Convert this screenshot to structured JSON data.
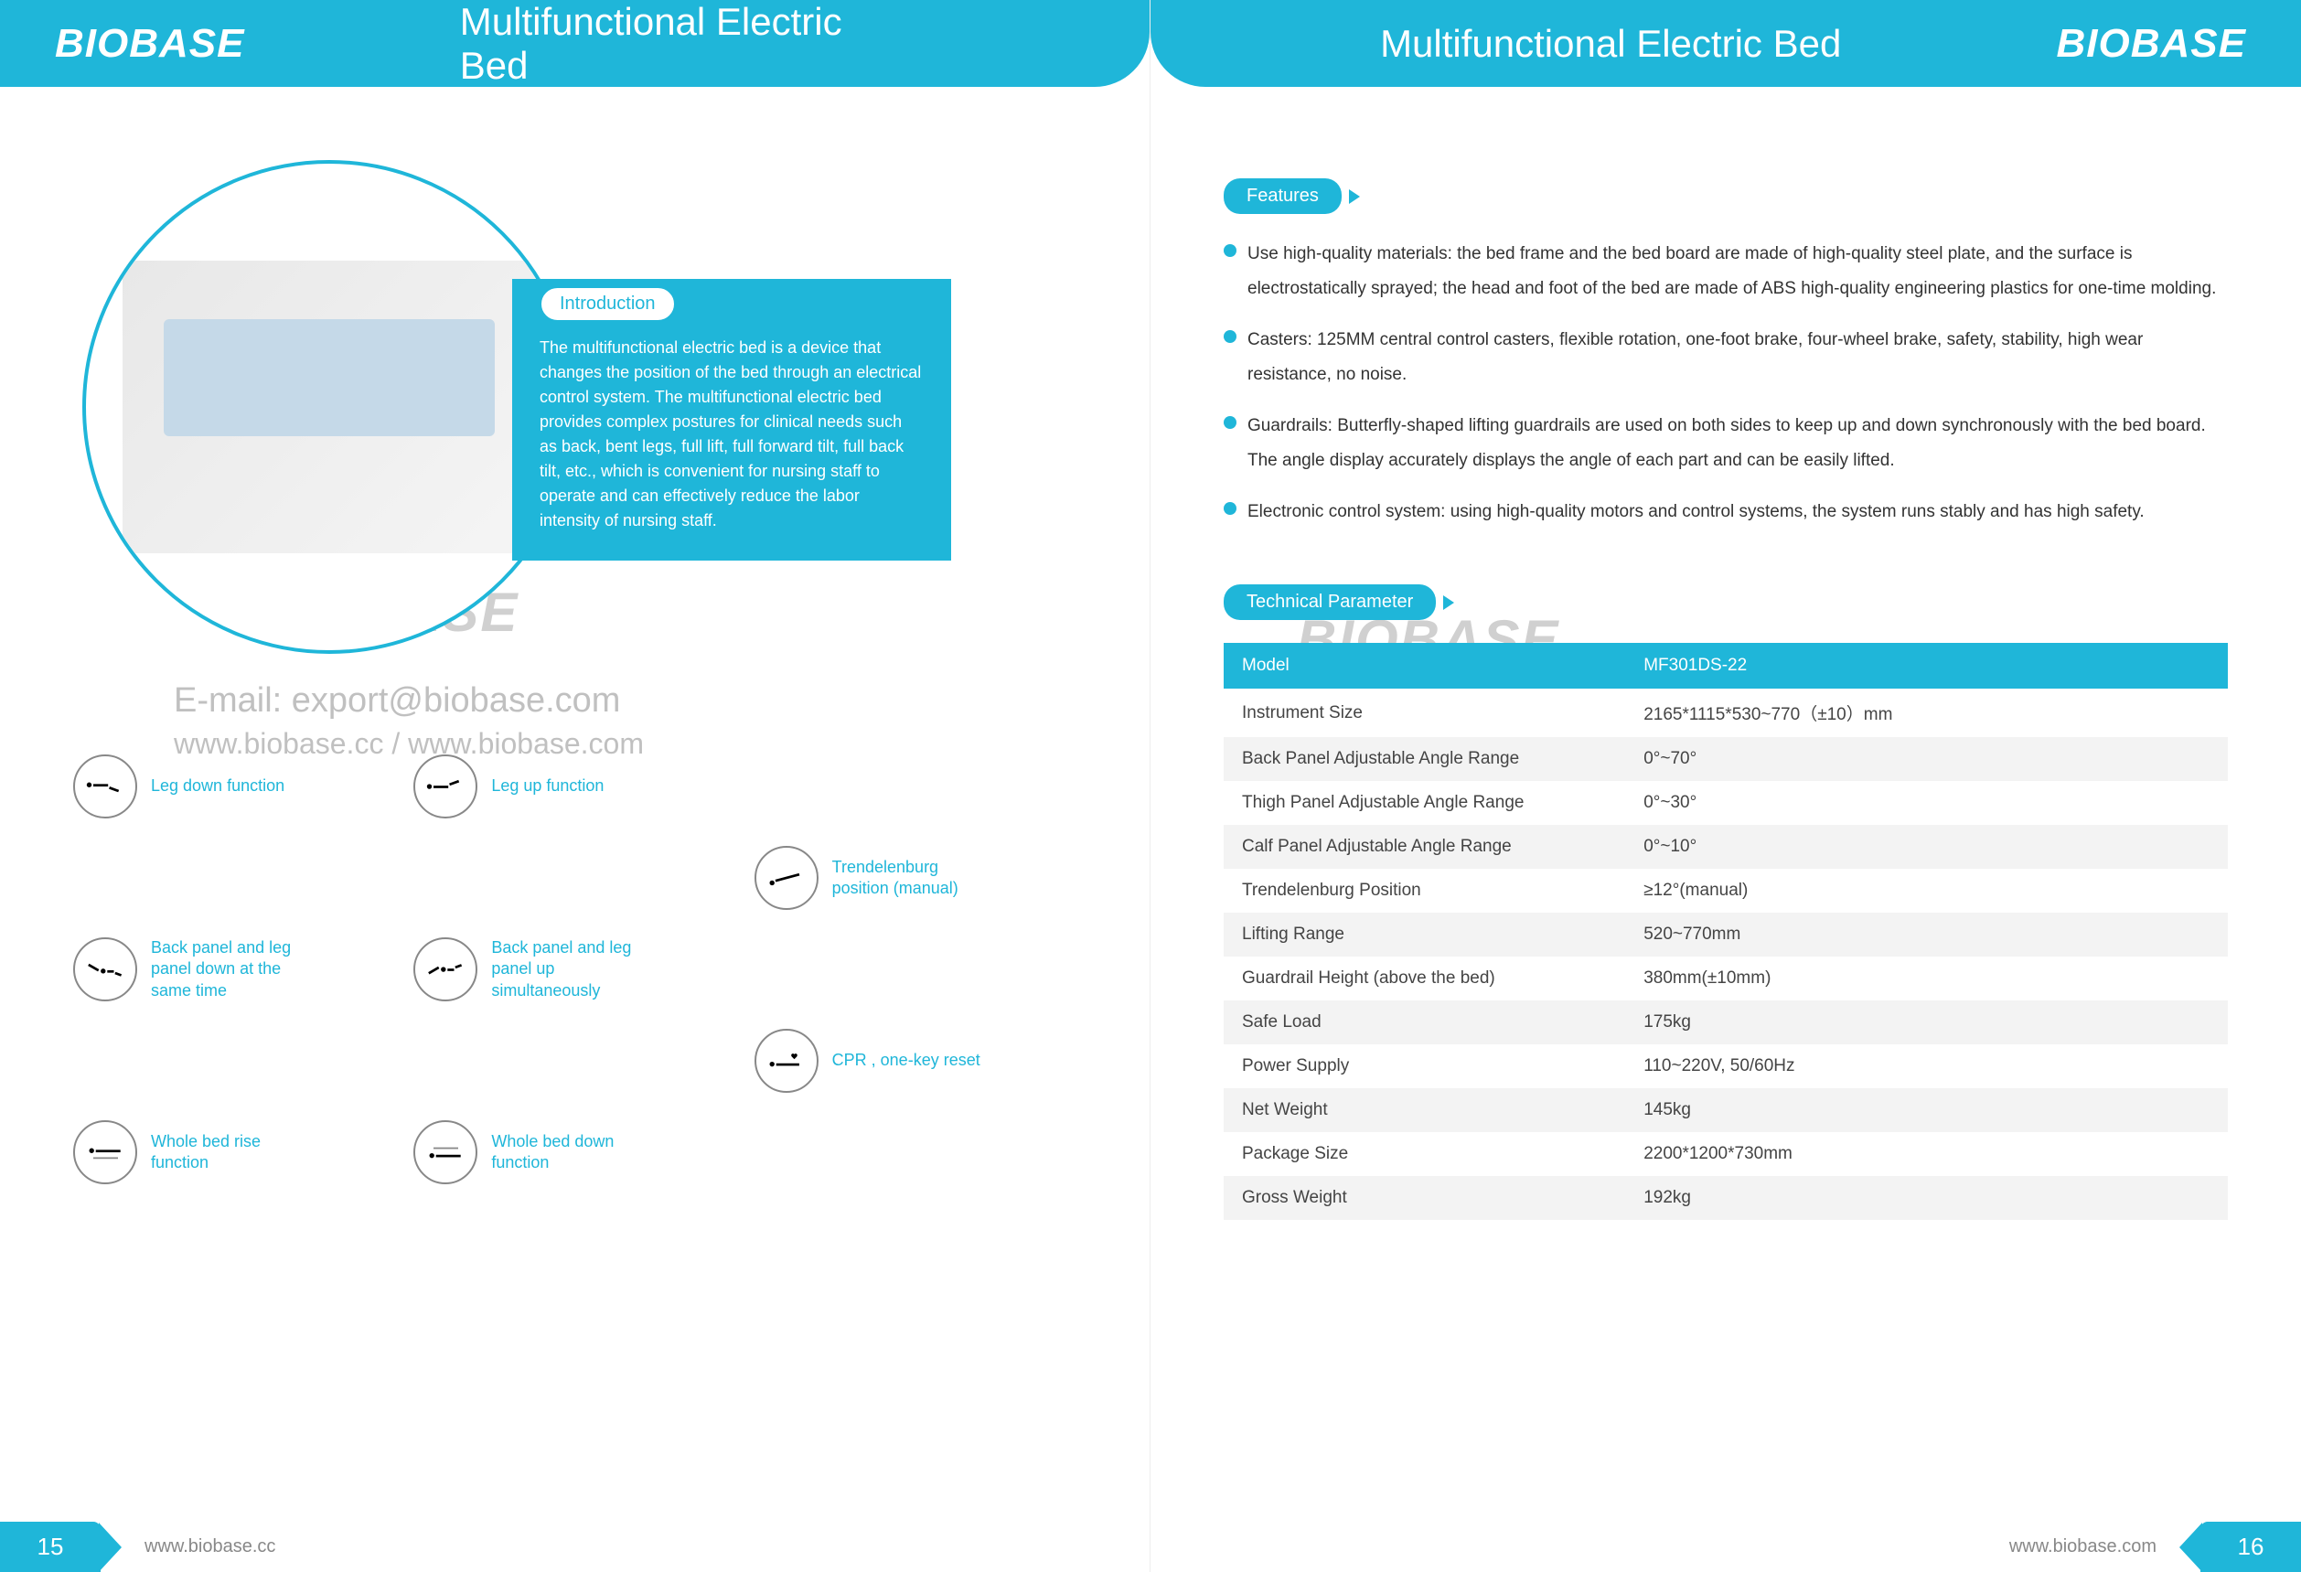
{
  "brand": "BIOBASE",
  "title": "Multifunctional Electric Bed",
  "watermark_brand": "BIOBASE",
  "watermark_email": "E-mail: export@biobase.com",
  "watermark_urls": "www.biobase.cc / www.biobase.com",
  "intro": {
    "heading": "Introduction",
    "text": "The multifunctional electric bed is a device that changes the position of the bed through an electrical control system.\nThe multifunctional electric bed provides complex postures for clinical needs such as back, bent legs, full lift, full forward tilt, full back tilt, etc., which is convenient for nursing staff to operate and can effectively reduce the labor intensity of nursing staff."
  },
  "functions": [
    {
      "label": "Leg down function"
    },
    {
      "label": "Leg up function"
    },
    {
      "label": ""
    },
    {
      "label": ""
    },
    {
      "label": ""
    },
    {
      "label": "Trendelenburg position (manual)"
    },
    {
      "label": "Back panel and leg panel down at the same time"
    },
    {
      "label": "Back panel and leg panel up simultaneously"
    },
    {
      "label": ""
    },
    {
      "label": ""
    },
    {
      "label": ""
    },
    {
      "label": "CPR , one-key reset"
    },
    {
      "label": "Whole bed rise function"
    },
    {
      "label": "Whole bed down function"
    },
    {
      "label": ""
    }
  ],
  "features": {
    "heading": "Features",
    "items": [
      "Use high-quality materials: the bed frame and the bed board are made of high-quality steel plate, and the surface is electrostatically sprayed; the head and foot of the bed are made of ABS high-quality engineering plastics for one-time molding.",
      "Casters: 125MM central control casters, flexible rotation, one-foot brake, four-wheel brake, safety, stability, high wear resistance, no noise.",
      "Guardrails: Butterfly-shaped lifting guardrails are used on both sides to keep up and down synchronously with the bed board. The angle display accurately displays the angle of each part and can be easily lifted.",
      "Electronic control system: using high-quality motors and control systems, the system runs stably and has high safety."
    ]
  },
  "parameters": {
    "heading": "Technical Parameter",
    "header": [
      "Model",
      "MF301DS-22"
    ],
    "rows": [
      [
        "Instrument Size",
        "2165*1115*530~770（±10）mm"
      ],
      [
        "Back Panel Adjustable Angle Range",
        "0°~70°"
      ],
      [
        "Thigh Panel Adjustable Angle Range",
        "0°~30°"
      ],
      [
        "Calf Panel Adjustable Angle Range",
        "0°~10°"
      ],
      [
        "Trendelenburg Position",
        "≥12°(manual)"
      ],
      [
        "Lifting Range",
        "520~770mm"
      ],
      [
        "Guardrail Height (above the bed)",
        "380mm(±10mm)"
      ],
      [
        "Safe Load",
        "175kg"
      ],
      [
        "Power Supply",
        "110~220V, 50/60Hz"
      ],
      [
        "Net Weight",
        "145kg"
      ],
      [
        "Package Size",
        "2200*1200*730mm"
      ],
      [
        "Gross Weight",
        "192kg"
      ]
    ]
  },
  "footer": {
    "left_url": "www.biobase.cc",
    "right_url": "www.biobase.com",
    "left_page": "15",
    "right_page": "16"
  },
  "colors": {
    "primary": "#1fb6d9",
    "text": "#333333",
    "muted": "#888888",
    "watermark": "#d0d0d0"
  }
}
